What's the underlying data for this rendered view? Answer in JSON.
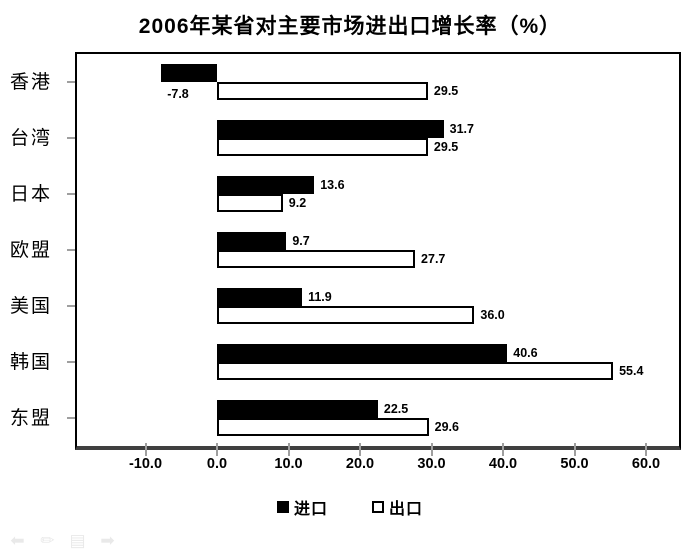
{
  "page": {
    "background": "#ffffff"
  },
  "chart_data": {
    "type": "bar",
    "orientation": "horizontal",
    "title": "2006年某省对主要市场进出口增长率（%）",
    "categories": [
      "香港",
      "台湾",
      "日本",
      "欧盟",
      "美国",
      "韩国",
      "东盟"
    ],
    "series": [
      {
        "name": "进口",
        "style": "solid-black",
        "color": "#000000",
        "values": [
          -7.8,
          31.7,
          13.6,
          9.7,
          11.9,
          40.6,
          22.5
        ],
        "labels": [
          "-7.8",
          "31.7",
          "13.6",
          "9.7",
          "11.9",
          "40.6",
          "22.5"
        ]
      },
      {
        "name": "出口",
        "style": "white-outlined",
        "color": "#ffffff",
        "values": [
          29.5,
          29.5,
          9.2,
          27.7,
          36.0,
          55.4,
          29.6
        ],
        "labels": [
          "29.5",
          "29.5",
          "9.2",
          "27.7",
          "36.0",
          "55.4",
          "29.6"
        ]
      }
    ],
    "x_ticks": [
      {
        "value": -10,
        "label": "-10.0"
      },
      {
        "value": 0,
        "label": "0.0"
      },
      {
        "value": 10,
        "label": "10.0"
      },
      {
        "value": 20,
        "label": "20.0"
      },
      {
        "value": 30,
        "label": "30.0"
      },
      {
        "value": 40,
        "label": "40.0"
      },
      {
        "value": 50,
        "label": "50.0"
      },
      {
        "value": 60,
        "label": "60.0"
      }
    ],
    "xlim": [
      -19.6,
      64.9
    ],
    "grid": false,
    "legend_position": "bottom",
    "axis_color": "#3f3f3f",
    "bar_border_color": "#000000"
  },
  "toolbar_icons": [
    {
      "name": "back-arrow-icon",
      "glyph": "⬅"
    },
    {
      "name": "pencil-icon",
      "glyph": "✏"
    },
    {
      "name": "list-icon",
      "glyph": "▤"
    },
    {
      "name": "forward-arrow-icon",
      "glyph": "➡"
    }
  ]
}
